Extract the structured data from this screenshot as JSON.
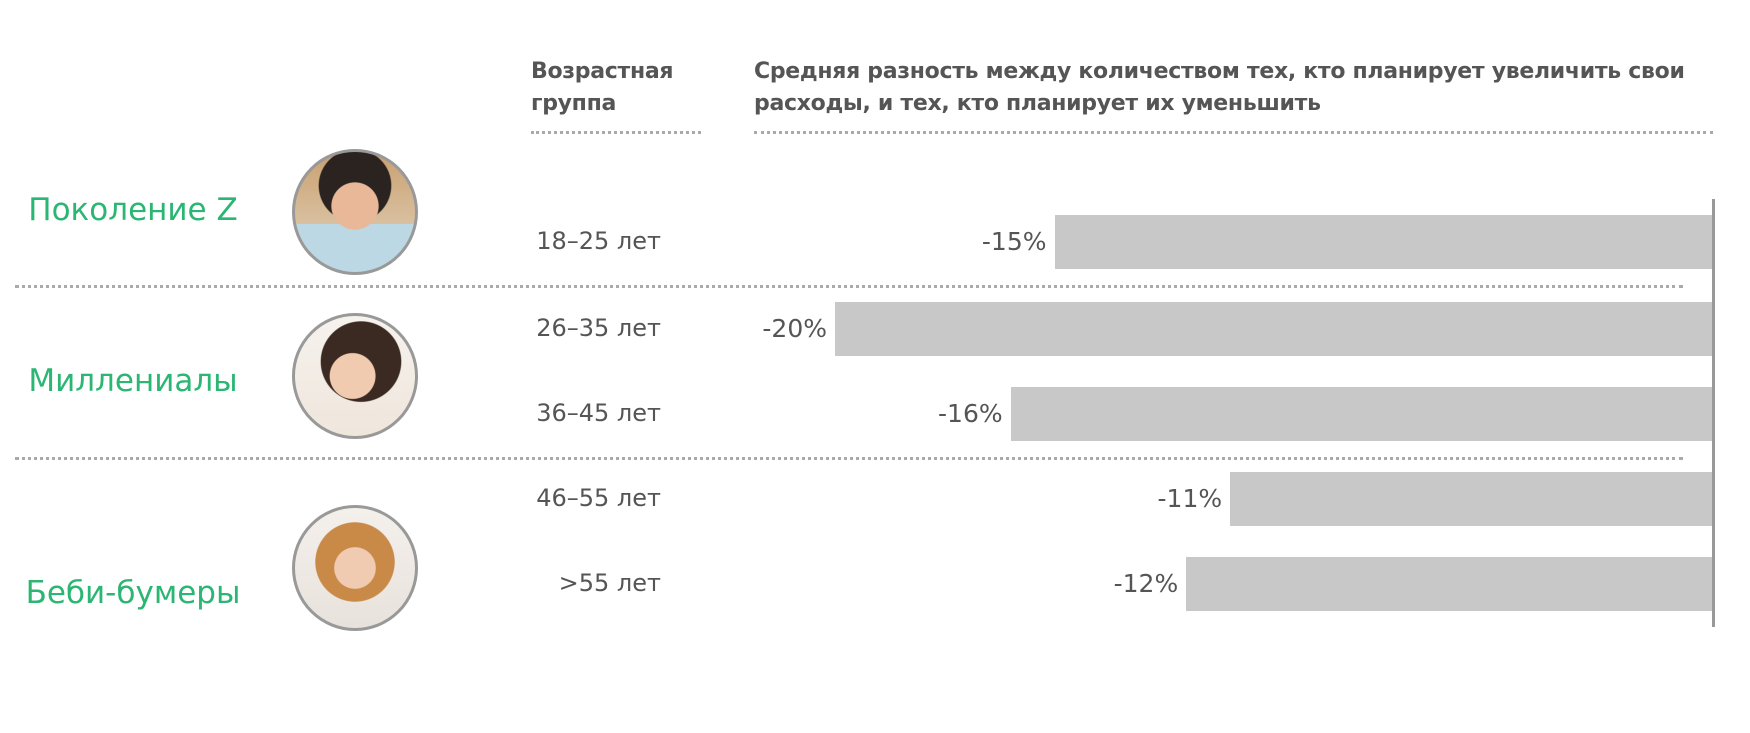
{
  "header": {
    "age_group": "Возрастная группа",
    "metric": "Средняя разность между количеством тех, кто планирует увеличить свои расходы, и тех, кто планирует их уменьшить"
  },
  "groups": [
    {
      "label": "Поколение Z",
      "photo": "young-man-photo"
    },
    {
      "label": "Миллениалы",
      "photo": "young-woman-photo"
    },
    {
      "label": "Беби-бумеры",
      "photo": "older-woman-photo"
    }
  ],
  "colors": {
    "group_label": "#2bb673",
    "bar": "#c8c8c8",
    "text": "#555555"
  },
  "chart_data": {
    "type": "bar",
    "orientation": "horizontal",
    "categories": [
      "18–25 лет",
      "26–35 лет",
      "36–45 лет",
      "46–55 лет",
      ">55 лет"
    ],
    "values": [
      -15,
      -20,
      -16,
      -11,
      -12
    ],
    "labels": [
      "-15%",
      "-20%",
      "-16%",
      "-11%",
      "-12%"
    ],
    "unit": "%",
    "xlim": [
      -20,
      0
    ]
  }
}
